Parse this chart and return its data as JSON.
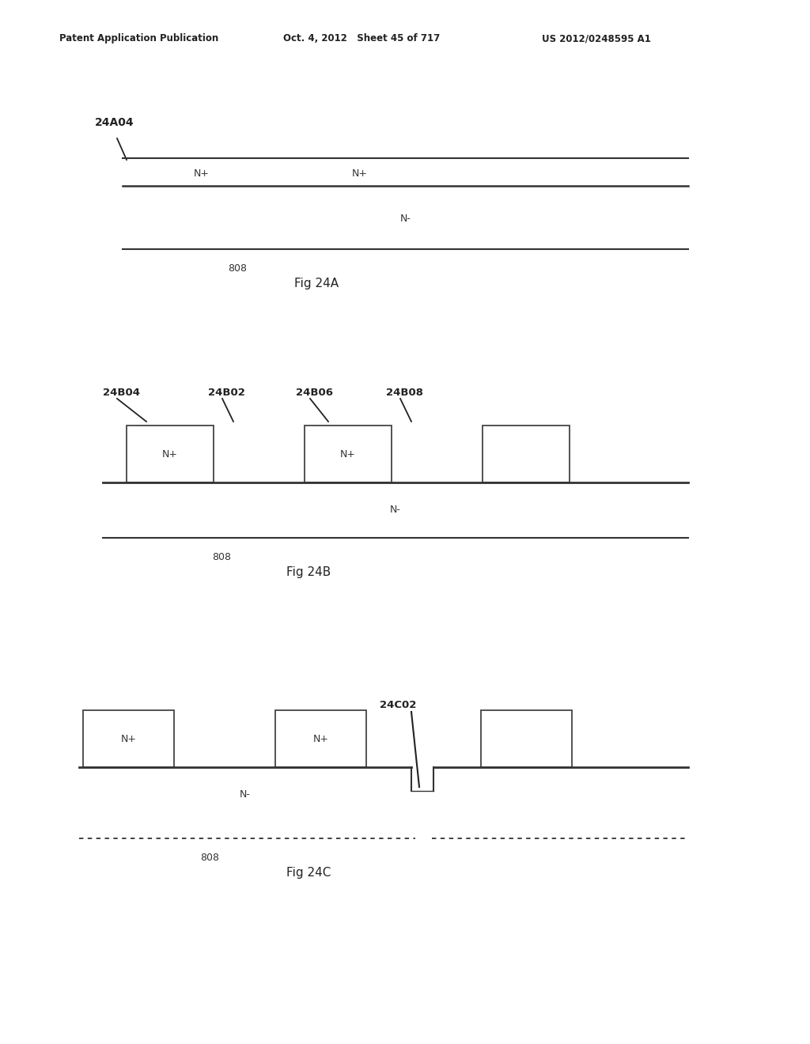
{
  "bg_color": "#ffffff",
  "header_left": "Patent Application Publication",
  "header_mid": "Oct. 4, 2012   Sheet 45 of 717",
  "header_right": "US 2012/0248595 A1",
  "figA_label": "24A04",
  "figA_nplus": [
    "N+",
    "N+"
  ],
  "figA_nminus": "N-",
  "figA_num": "808",
  "figA_caption": "Fig 24A",
  "figB_labels": [
    "24B04",
    "24B02",
    "24B06",
    "24B08"
  ],
  "figB_nminus": "N-",
  "figB_num": "808",
  "figB_caption": "Fig 24B",
  "figC_label": "24C02",
  "figC_nminus": "N-",
  "figC_num": "808",
  "figC_caption": "Fig 24C",
  "line_color": "#333333",
  "text_color": "#222222",
  "box_edge_color": "#444444"
}
